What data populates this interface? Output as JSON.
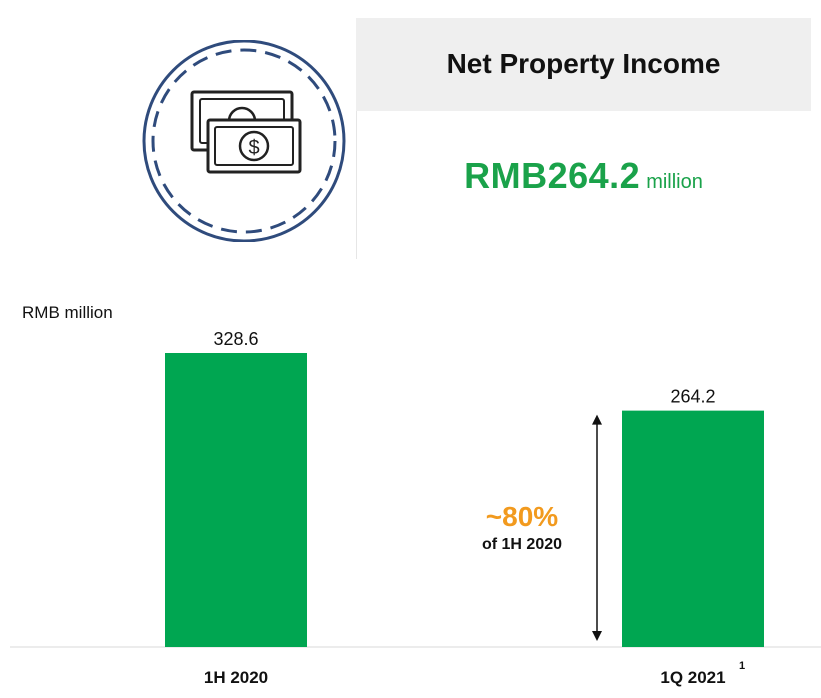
{
  "header": {
    "title": "Net Property Income"
  },
  "headline": {
    "value": "RMB264.2",
    "unit": "million"
  },
  "icon": {
    "name": "money-bills-icon",
    "ring_color": "#2f4b7c"
  },
  "colors": {
    "bar": "#00a651",
    "headline": "#1aa24a",
    "annotation": "#f29a1e"
  },
  "chart_data": {
    "type": "bar",
    "ylabel": "RMB million",
    "categories": [
      "1H 2020",
      "1Q 2021"
    ],
    "category_superscripts": [
      "",
      "1"
    ],
    "values": [
      328.6,
      264.2
    ],
    "value_labels": [
      "328.6",
      "264.2"
    ],
    "ylim": [
      0,
      328.6
    ],
    "grid": false,
    "annotation": {
      "value": "~80%",
      "text": "of 1H 2020"
    }
  }
}
